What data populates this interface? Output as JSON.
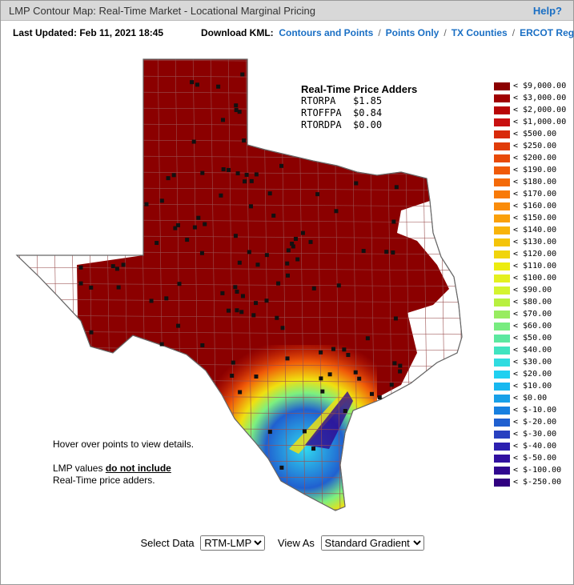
{
  "header": {
    "title": "LMP Contour Map: Real-Time Market - Locational Marginal Pricing",
    "help": "Help?"
  },
  "toolbar": {
    "last_updated": "Last Updated: Feb 11, 2021 18:45",
    "download_label": "Download KML:",
    "separator": "/",
    "links": [
      "Contours and Points",
      "Points Only",
      "TX Counties",
      "ERCOT Region"
    ]
  },
  "adders": {
    "title": "Real-Time Price Adders",
    "rows": [
      [
        "RTORPA",
        "$1.85"
      ],
      [
        "RTOFFPA",
        "$0.84"
      ],
      [
        "RTORDPA",
        "$0.00"
      ]
    ]
  },
  "legend": [
    {
      "label": "< $9,000.00",
      "color": "#8b0000"
    },
    {
      "label": "< $3,000.00",
      "color": "#a00000"
    },
    {
      "label": "< $2,000.00",
      "color": "#b80606"
    },
    {
      "label": "< $1,000.00",
      "color": "#c81010"
    },
    {
      "label": "< $500.00",
      "color": "#d82a0a"
    },
    {
      "label": "< $250.00",
      "color": "#e03c08"
    },
    {
      "label": "< $200.00",
      "color": "#e84a08"
    },
    {
      "label": "< $190.00",
      "color": "#f05a08"
    },
    {
      "label": "< $180.00",
      "color": "#f46a08"
    },
    {
      "label": "< $170.00",
      "color": "#f87a08"
    },
    {
      "label": "< $160.00",
      "color": "#fa8c0a"
    },
    {
      "label": "< $150.00",
      "color": "#faa00a"
    },
    {
      "label": "< $140.00",
      "color": "#f8b40a"
    },
    {
      "label": "< $130.00",
      "color": "#f4c40a"
    },
    {
      "label": "< $120.00",
      "color": "#f0d40c"
    },
    {
      "label": "< $110.00",
      "color": "#ecec10"
    },
    {
      "label": "< $100.00",
      "color": "#e4f020"
    },
    {
      "label": "< $90.00",
      "color": "#d4f430"
    },
    {
      "label": "< $80.00",
      "color": "#b8f040"
    },
    {
      "label": "< $70.00",
      "color": "#98ec60"
    },
    {
      "label": "< $60.00",
      "color": "#78ec80"
    },
    {
      "label": "< $50.00",
      "color": "#5ce8a0"
    },
    {
      "label": "< $40.00",
      "color": "#40e4c0"
    },
    {
      "label": "< $30.00",
      "color": "#30dce0"
    },
    {
      "label": "< $20.00",
      "color": "#20d0f0"
    },
    {
      "label": "< $10.00",
      "color": "#18b8f0"
    },
    {
      "label": "< $0.00",
      "color": "#18a0e8"
    },
    {
      "label": "< $-10.00",
      "color": "#1880e0"
    },
    {
      "label": "< $-20.00",
      "color": "#2060d0"
    },
    {
      "label": "< $-30.00",
      "color": "#2840c0"
    },
    {
      "label": "< $-40.00",
      "color": "#2c20b0"
    },
    {
      "label": "< $-50.00",
      "color": "#3010a0"
    },
    {
      "label": "< $-100.00",
      "color": "#300890"
    },
    {
      "label": "< $-250.00",
      "color": "#300080"
    }
  ],
  "notes": {
    "hover": "Hover over points to view details.",
    "lmp_prefix": "LMP values",
    "lmp_emphasis": "do not include",
    "lmp_suffix": "Real-Time price adders."
  },
  "controls": {
    "select_data_label": "Select Data",
    "select_data_value": "RTM-LMP",
    "view_as_label": "View As",
    "view_as_value": "Standard Gradient"
  }
}
